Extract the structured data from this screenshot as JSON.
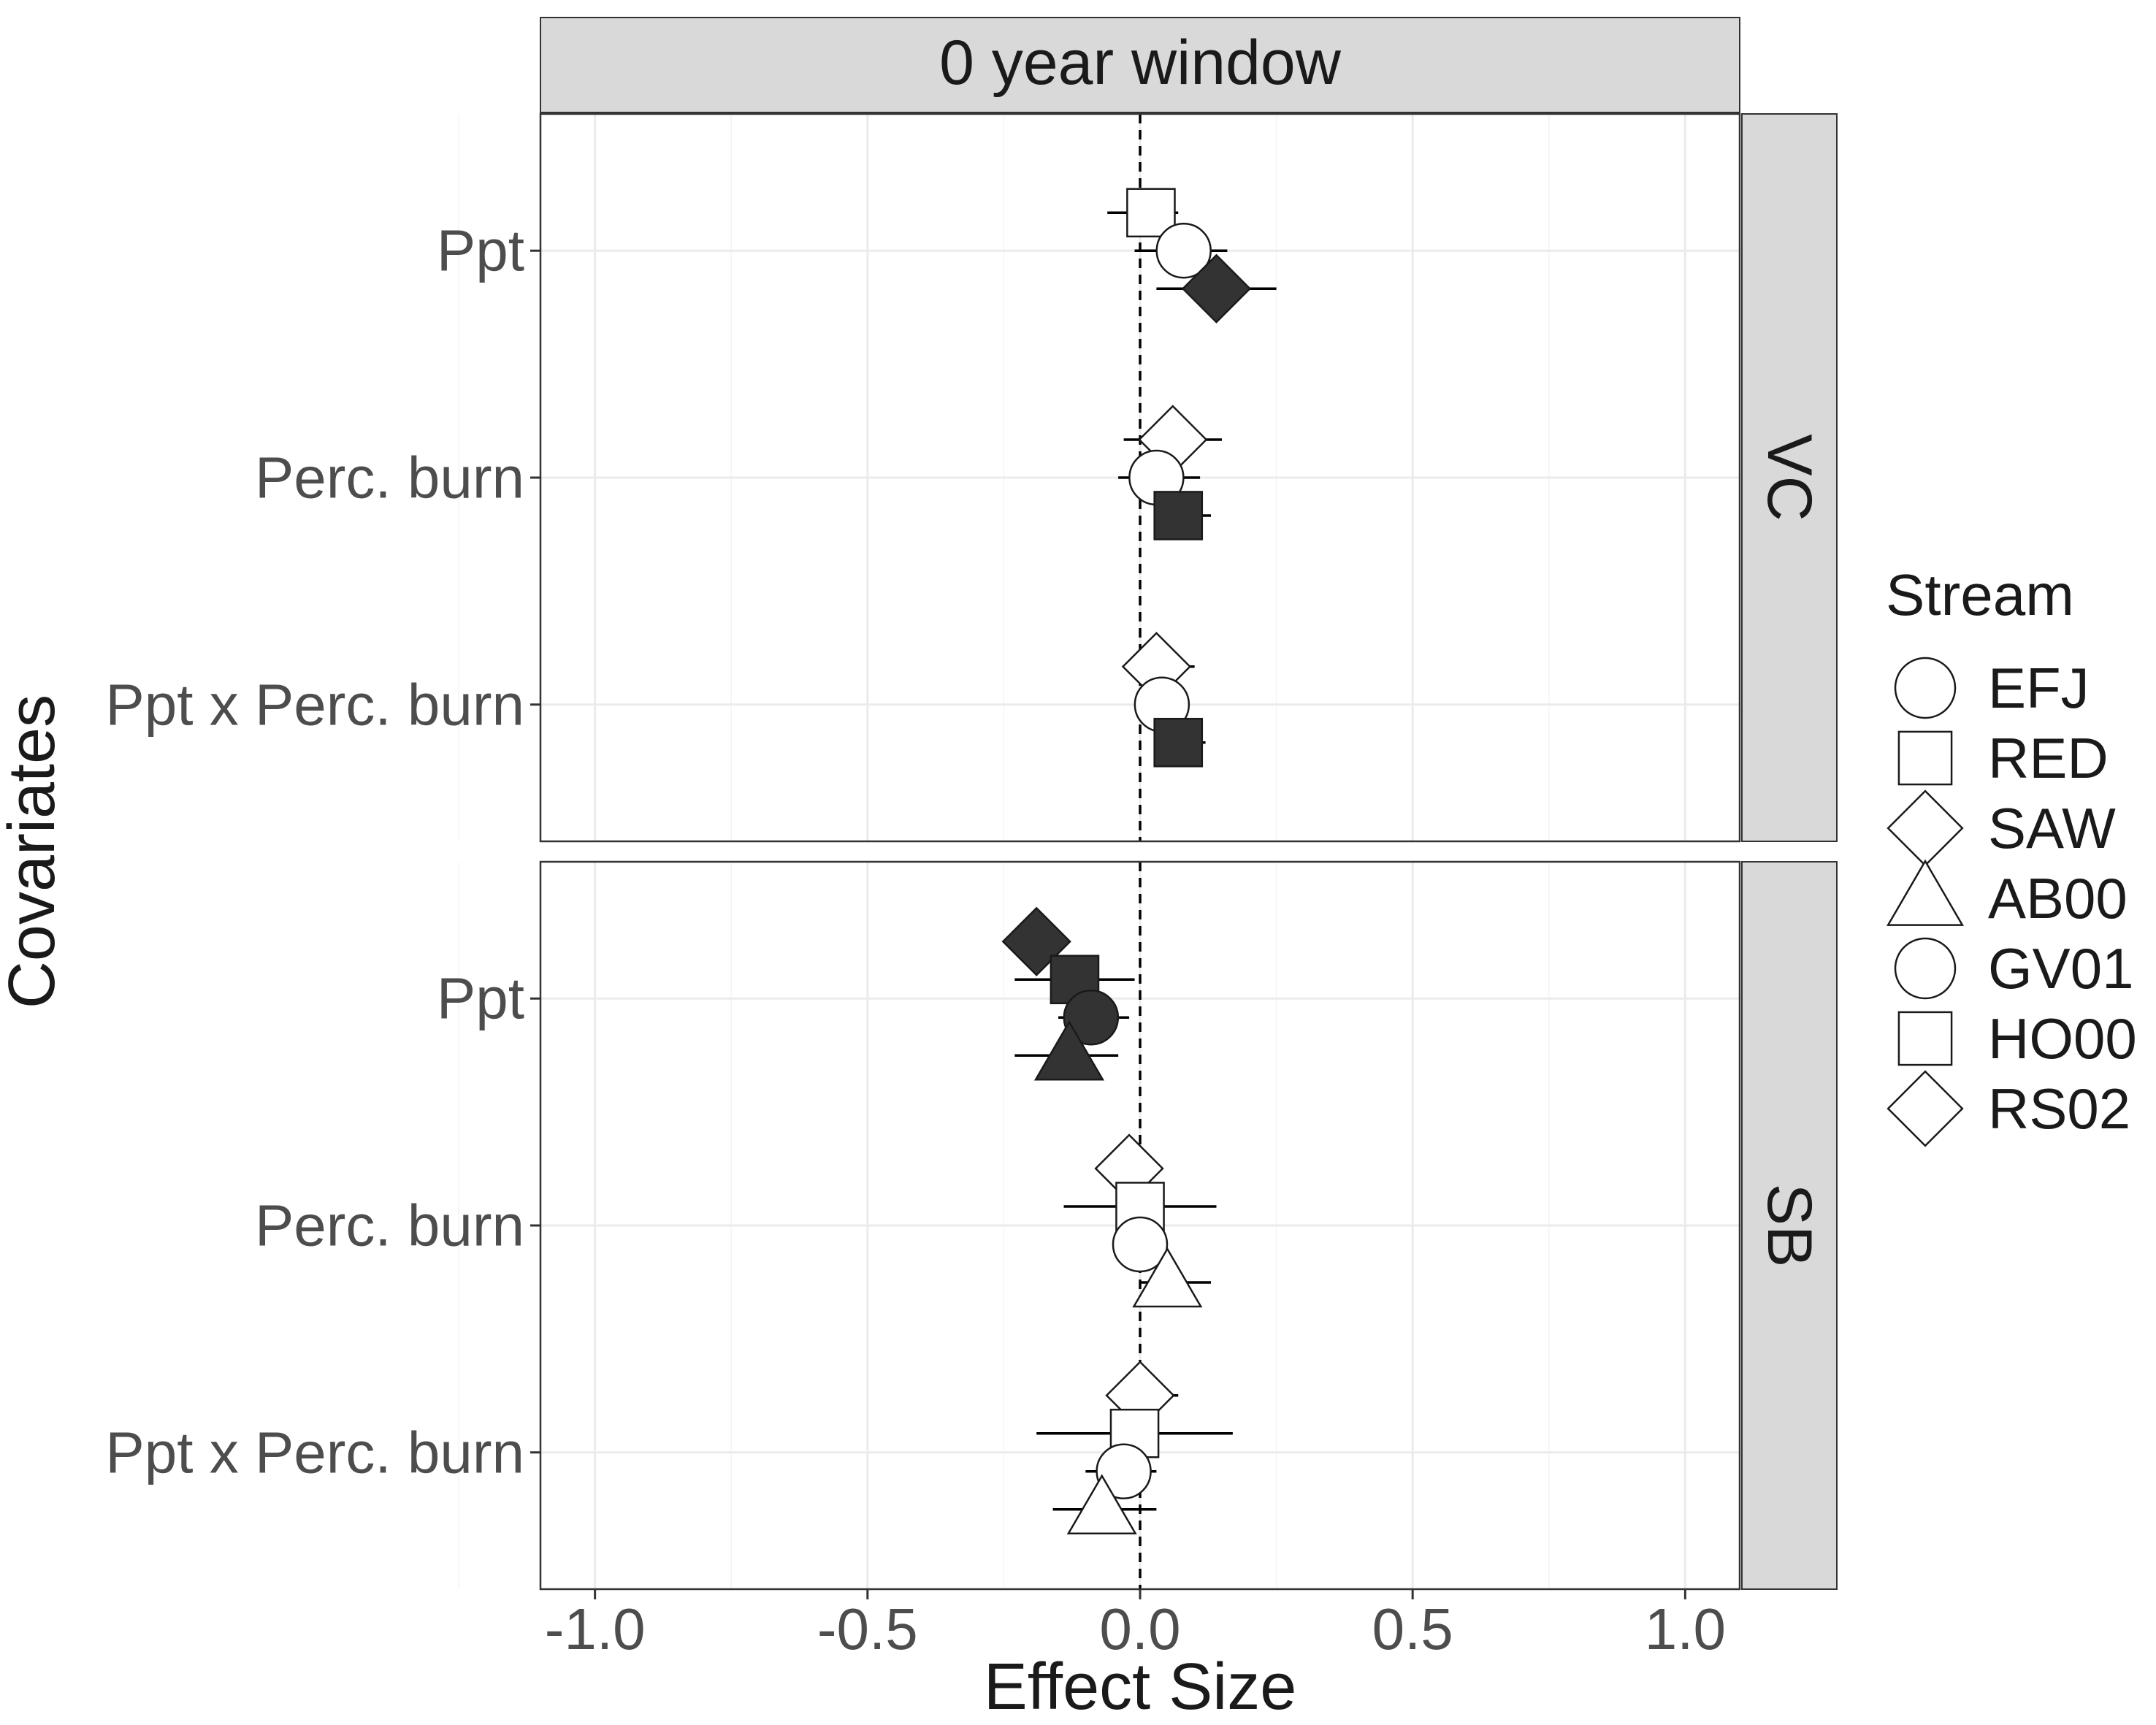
{
  "chart_data": {
    "type": "scatter",
    "title": "",
    "facet_column_label": "0 year window",
    "xlabel": "Effect Size",
    "ylabel": "Covariates",
    "xlim": [
      -1.1,
      1.1
    ],
    "x_ticks": [
      -1.0,
      -0.5,
      0.0,
      0.5,
      1.0
    ],
    "x_tick_labels": [
      "-1.0",
      "-0.5",
      "0.0",
      "0.5",
      "1.0"
    ],
    "reference_line": 0,
    "grid": true,
    "legend": {
      "title": "Stream",
      "position": "right",
      "entries": [
        {
          "label": "EFJ",
          "shape": "circle"
        },
        {
          "label": "RED",
          "shape": "square"
        },
        {
          "label": "SAW",
          "shape": "diamond"
        },
        {
          "label": "AB00",
          "shape": "triangle"
        },
        {
          "label": "GV01",
          "shape": "circle"
        },
        {
          "label": "HO00",
          "shape": "square"
        },
        {
          "label": "RS02",
          "shape": "diamond"
        }
      ]
    },
    "colors": {
      "filled": "#333333",
      "open": "#ffffff",
      "outline": "#1a1a1a",
      "strip": "#d9d9d9",
      "grid": "#ebebeb"
    },
    "facets": [
      {
        "label": "VC",
        "covariates": [
          "Ppt",
          "Perc. burn",
          "Ppt x Perc. burn"
        ],
        "points": [
          {
            "covariate": "Ppt",
            "stream": "RED",
            "estimate": 0.02,
            "lo": -0.06,
            "hi": 0.07,
            "filled": false
          },
          {
            "covariate": "Ppt",
            "stream": "EFJ",
            "estimate": 0.08,
            "lo": -0.01,
            "hi": 0.16,
            "filled": false
          },
          {
            "covariate": "Ppt",
            "stream": "SAW",
            "estimate": 0.14,
            "lo": 0.03,
            "hi": 0.25,
            "filled": true
          },
          {
            "covariate": "Perc. burn",
            "stream": "SAW",
            "estimate": 0.06,
            "lo": -0.03,
            "hi": 0.15,
            "filled": false
          },
          {
            "covariate": "Perc. burn",
            "stream": "EFJ",
            "estimate": 0.03,
            "lo": -0.04,
            "hi": 0.11,
            "filled": false
          },
          {
            "covariate": "Perc. burn",
            "stream": "RED",
            "estimate": 0.07,
            "lo": 0.03,
            "hi": 0.13,
            "filled": true
          },
          {
            "covariate": "Ppt x Perc. burn",
            "stream": "SAW",
            "estimate": 0.03,
            "lo": -0.02,
            "hi": 0.1,
            "filled": false
          },
          {
            "covariate": "Ppt x Perc. burn",
            "stream": "EFJ",
            "estimate": 0.04,
            "lo": -0.01,
            "hi": 0.09,
            "filled": false
          },
          {
            "covariate": "Ppt x Perc. burn",
            "stream": "RED",
            "estimate": 0.07,
            "lo": 0.03,
            "hi": 0.12,
            "filled": true
          }
        ]
      },
      {
        "label": "SB",
        "covariates": [
          "Ppt",
          "Perc. burn",
          "Ppt x Perc. burn"
        ],
        "points": [
          {
            "covariate": "Ppt",
            "stream": "RS02",
            "estimate": -0.19,
            "lo": -0.25,
            "hi": -0.13,
            "filled": true
          },
          {
            "covariate": "Ppt",
            "stream": "HO00",
            "estimate": -0.12,
            "lo": -0.23,
            "hi": -0.01,
            "filled": true
          },
          {
            "covariate": "Ppt",
            "stream": "GV01",
            "estimate": -0.09,
            "lo": -0.15,
            "hi": -0.02,
            "filled": true
          },
          {
            "covariate": "Ppt",
            "stream": "AB00",
            "estimate": -0.13,
            "lo": -0.23,
            "hi": -0.04,
            "filled": true
          },
          {
            "covariate": "Perc. burn",
            "stream": "RS02",
            "estimate": -0.02,
            "lo": -0.08,
            "hi": 0.03,
            "filled": false
          },
          {
            "covariate": "Perc. burn",
            "stream": "HO00",
            "estimate": 0.0,
            "lo": -0.14,
            "hi": 0.14,
            "filled": false
          },
          {
            "covariate": "Perc. burn",
            "stream": "GV01",
            "estimate": 0.0,
            "lo": -0.05,
            "hi": 0.05,
            "filled": false
          },
          {
            "covariate": "Perc. burn",
            "stream": "AB00",
            "estimate": 0.05,
            "lo": 0.0,
            "hi": 0.13,
            "filled": false
          },
          {
            "covariate": "Ppt x Perc. burn",
            "stream": "RS02",
            "estimate": 0.0,
            "lo": -0.05,
            "hi": 0.07,
            "filled": false
          },
          {
            "covariate": "Ppt x Perc. burn",
            "stream": "HO00",
            "estimate": -0.01,
            "lo": -0.19,
            "hi": 0.17,
            "filled": false
          },
          {
            "covariate": "Ppt x Perc. burn",
            "stream": "GV01",
            "estimate": -0.03,
            "lo": -0.1,
            "hi": 0.03,
            "filled": false
          },
          {
            "covariate": "Ppt x Perc. burn",
            "stream": "AB00",
            "estimate": -0.07,
            "lo": -0.16,
            "hi": 0.03,
            "filled": false
          }
        ]
      }
    ]
  }
}
